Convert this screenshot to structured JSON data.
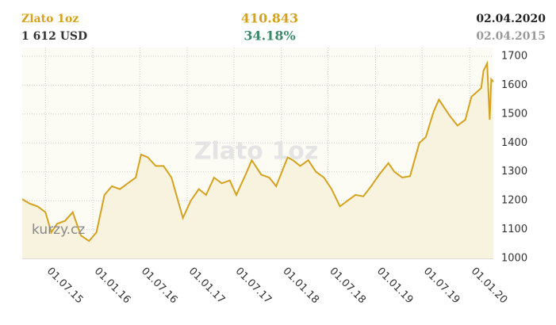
{
  "header": {
    "name": "Zlato 1oz",
    "price": "1 612 USD",
    "change": "410.843",
    "change_pct": "34.18%",
    "date_end": "02.04.2020",
    "date_start": "02.04.2015"
  },
  "watermark": "Zlato 1oz",
  "logo": "kurzy.cz",
  "chart_data": {
    "type": "area",
    "color": "#d4a21e",
    "fill": "#f7f3df",
    "x": [
      "2015-04-02",
      "2015-05-01",
      "2015-06-01",
      "2015-07-01",
      "2015-07-24",
      "2015-08-15",
      "2015-09-15",
      "2015-10-15",
      "2015-11-15",
      "2015-12-17",
      "2016-01-15",
      "2016-02-15",
      "2016-03-15",
      "2016-04-15",
      "2016-05-15",
      "2016-06-15",
      "2016-07-06",
      "2016-08-01",
      "2016-09-01",
      "2016-10-01",
      "2016-11-01",
      "2016-12-15",
      "2017-01-15",
      "2017-02-15",
      "2017-03-15",
      "2017-04-15",
      "2017-05-15",
      "2017-06-15",
      "2017-07-10",
      "2017-08-15",
      "2017-09-08",
      "2017-10-15",
      "2017-11-15",
      "2017-12-12",
      "2018-01-25",
      "2018-02-15",
      "2018-03-15",
      "2018-04-15",
      "2018-05-15",
      "2018-06-15",
      "2018-07-15",
      "2018-08-16",
      "2018-09-15",
      "2018-10-15",
      "2018-11-15",
      "2018-12-15",
      "2019-01-15",
      "2019-02-20",
      "2019-03-15",
      "2019-04-15",
      "2019-05-15",
      "2019-06-20",
      "2019-07-15",
      "2019-08-15",
      "2019-09-04",
      "2019-10-15",
      "2019-11-15",
      "2019-12-15",
      "2020-01-08",
      "2020-02-15",
      "2020-02-24",
      "2020-03-09",
      "2020-03-19",
      "2020-03-25",
      "2020-04-02"
    ],
    "values": [
      1205,
      1190,
      1180,
      1160,
      1090,
      1120,
      1130,
      1160,
      1080,
      1060,
      1090,
      1220,
      1250,
      1240,
      1260,
      1280,
      1360,
      1350,
      1320,
      1320,
      1280,
      1140,
      1200,
      1240,
      1220,
      1280,
      1260,
      1270,
      1220,
      1290,
      1340,
      1290,
      1280,
      1250,
      1350,
      1340,
      1320,
      1340,
      1300,
      1280,
      1240,
      1180,
      1200,
      1220,
      1215,
      1250,
      1290,
      1330,
      1300,
      1280,
      1285,
      1400,
      1420,
      1510,
      1550,
      1495,
      1460,
      1480,
      1560,
      1590,
      1650,
      1675,
      1480,
      1620,
      1612
    ],
    "ylim": [
      1000,
      1700
    ],
    "yticks": [
      1000,
      1100,
      1200,
      1300,
      1400,
      1500,
      1600,
      1700
    ],
    "xlim": [
      "2015-04-02",
      "2020-04-02"
    ],
    "xticks": [
      {
        "value": "2015-07-01",
        "label": "01.07.15"
      },
      {
        "value": "2016-01-01",
        "label": "01.01.16"
      },
      {
        "value": "2016-07-01",
        "label": "01.07.16"
      },
      {
        "value": "2017-01-01",
        "label": "01.01.17"
      },
      {
        "value": "2017-07-01",
        "label": "01.07.17"
      },
      {
        "value": "2018-01-01",
        "label": "01.01.18"
      },
      {
        "value": "2018-07-01",
        "label": "01.07.18"
      },
      {
        "value": "2019-01-01",
        "label": "01.01.19"
      },
      {
        "value": "2019-07-01",
        "label": "01.07.19"
      },
      {
        "value": "2020-01-01",
        "label": "01.01.20"
      }
    ],
    "grid": true
  }
}
